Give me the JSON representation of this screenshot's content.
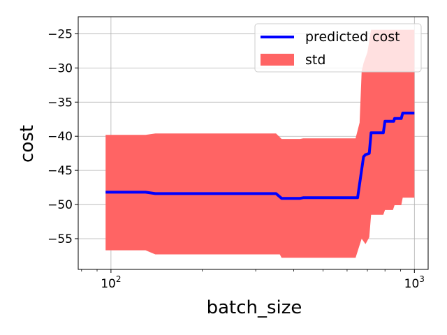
{
  "chart_data": {
    "type": "line",
    "title": "",
    "xlabel": "batch_size",
    "ylabel": "cost",
    "xscale": "log",
    "xlim": [
      78,
      1110
    ],
    "ylim": [
      -59.5,
      -22.5
    ],
    "grid": true,
    "legend_position": "top-right",
    "x_ticks": [
      {
        "value": 100,
        "base": "10",
        "exp": "2"
      },
      {
        "value": 1000,
        "base": "10",
        "exp": "3"
      }
    ],
    "y_ticks": [
      {
        "value": -25,
        "label": "−25"
      },
      {
        "value": -30,
        "label": "−30"
      },
      {
        "value": -35,
        "label": "−35"
      },
      {
        "value": -40,
        "label": "−40"
      },
      {
        "value": -45,
        "label": "−45"
      },
      {
        "value": -50,
        "label": "−50"
      },
      {
        "value": -55,
        "label": "−55"
      }
    ],
    "series": [
      {
        "name": "predicted cost",
        "kind": "line",
        "color": "#0000ff",
        "points": [
          [
            96,
            -48.2
          ],
          [
            130,
            -48.2
          ],
          [
            140,
            -48.4
          ],
          [
            250,
            -48.4
          ],
          [
            350,
            -48.4
          ],
          [
            365,
            -49.1
          ],
          [
            420,
            -49.1
          ],
          [
            430,
            -49.0
          ],
          [
            650,
            -49.0
          ],
          [
            680,
            -43.0
          ],
          [
            690,
            -42.7
          ],
          [
            710,
            -42.5
          ],
          [
            720,
            -39.5
          ],
          [
            790,
            -39.5
          ],
          [
            800,
            -37.8
          ],
          [
            855,
            -37.8
          ],
          [
            860,
            -37.4
          ],
          [
            905,
            -37.4
          ],
          [
            915,
            -36.6
          ],
          [
            1000,
            -36.6
          ]
        ]
      },
      {
        "name": "std",
        "kind": "band",
        "color": "#ff6464",
        "upper": [
          [
            96,
            -39.8
          ],
          [
            130,
            -39.8
          ],
          [
            140,
            -39.6
          ],
          [
            350,
            -39.6
          ],
          [
            365,
            -40.4
          ],
          [
            420,
            -40.4
          ],
          [
            430,
            -40.3
          ],
          [
            640,
            -40.3
          ],
          [
            660,
            -38.0
          ],
          [
            670,
            -30.5
          ],
          [
            680,
            -29.3
          ],
          [
            700,
            -27.7
          ],
          [
            720,
            -24.4
          ],
          [
            1000,
            -24.4
          ]
        ],
        "lower": [
          [
            96,
            -56.7
          ],
          [
            130,
            -56.7
          ],
          [
            140,
            -57.3
          ],
          [
            360,
            -57.3
          ],
          [
            365,
            -57.8
          ],
          [
            640,
            -57.8
          ],
          [
            670,
            -55.0
          ],
          [
            690,
            -55.8
          ],
          [
            710,
            -54.8
          ],
          [
            720,
            -51.5
          ],
          [
            790,
            -51.5
          ],
          [
            800,
            -50.8
          ],
          [
            850,
            -50.8
          ],
          [
            860,
            -50.1
          ],
          [
            905,
            -50.1
          ],
          [
            915,
            -49.0
          ],
          [
            1000,
            -49.0
          ]
        ]
      }
    ]
  }
}
